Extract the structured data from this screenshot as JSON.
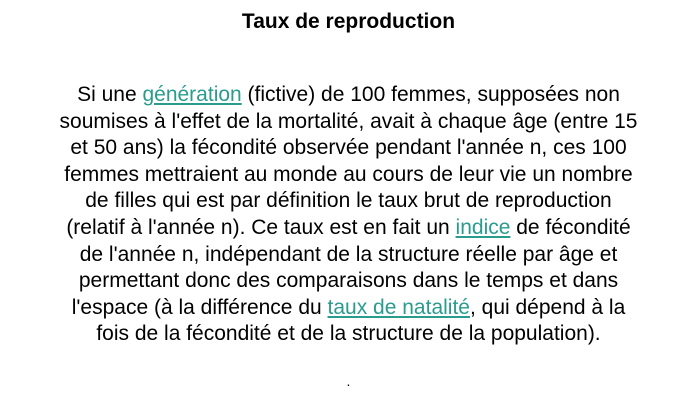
{
  "title": "Taux de reproduction",
  "paragraph": {
    "l1_a": "Si une ",
    "link_generation": "génération",
    "l1_b": " (fictive) de 100 femmes, supposées non",
    "l2": "soumises à l'effet de la mortalité, avait à chaque âge (entre 15",
    "l3": "et 50 ans) la fécondité observée pendant l'année n, ces 100",
    "l4": "femmes mettraient au monde au cours de leur vie un nombre",
    "l5": "de filles qui est par définition le taux brut de reproduction",
    "l6_a": "(relatif à l'année n). Ce taux est en fait un ",
    "link_indice": "indice",
    "l6_b": " de fécondité",
    "l7": "de l'année n, indépendant de la structure réelle par âge et",
    "l8": "permettant donc des comparaisons dans le temps et dans",
    "l9_a": "l'espace (à la différence du ",
    "link_taux_natalite": "taux de natalité",
    "l9_b": ", qui dépend à la",
    "l10": "fois de la fécondité et de la structure de la population)."
  },
  "trailing_mark": ".",
  "colors": {
    "link": "#2a9c8e",
    "text": "#000000",
    "background": "#ffffff"
  }
}
